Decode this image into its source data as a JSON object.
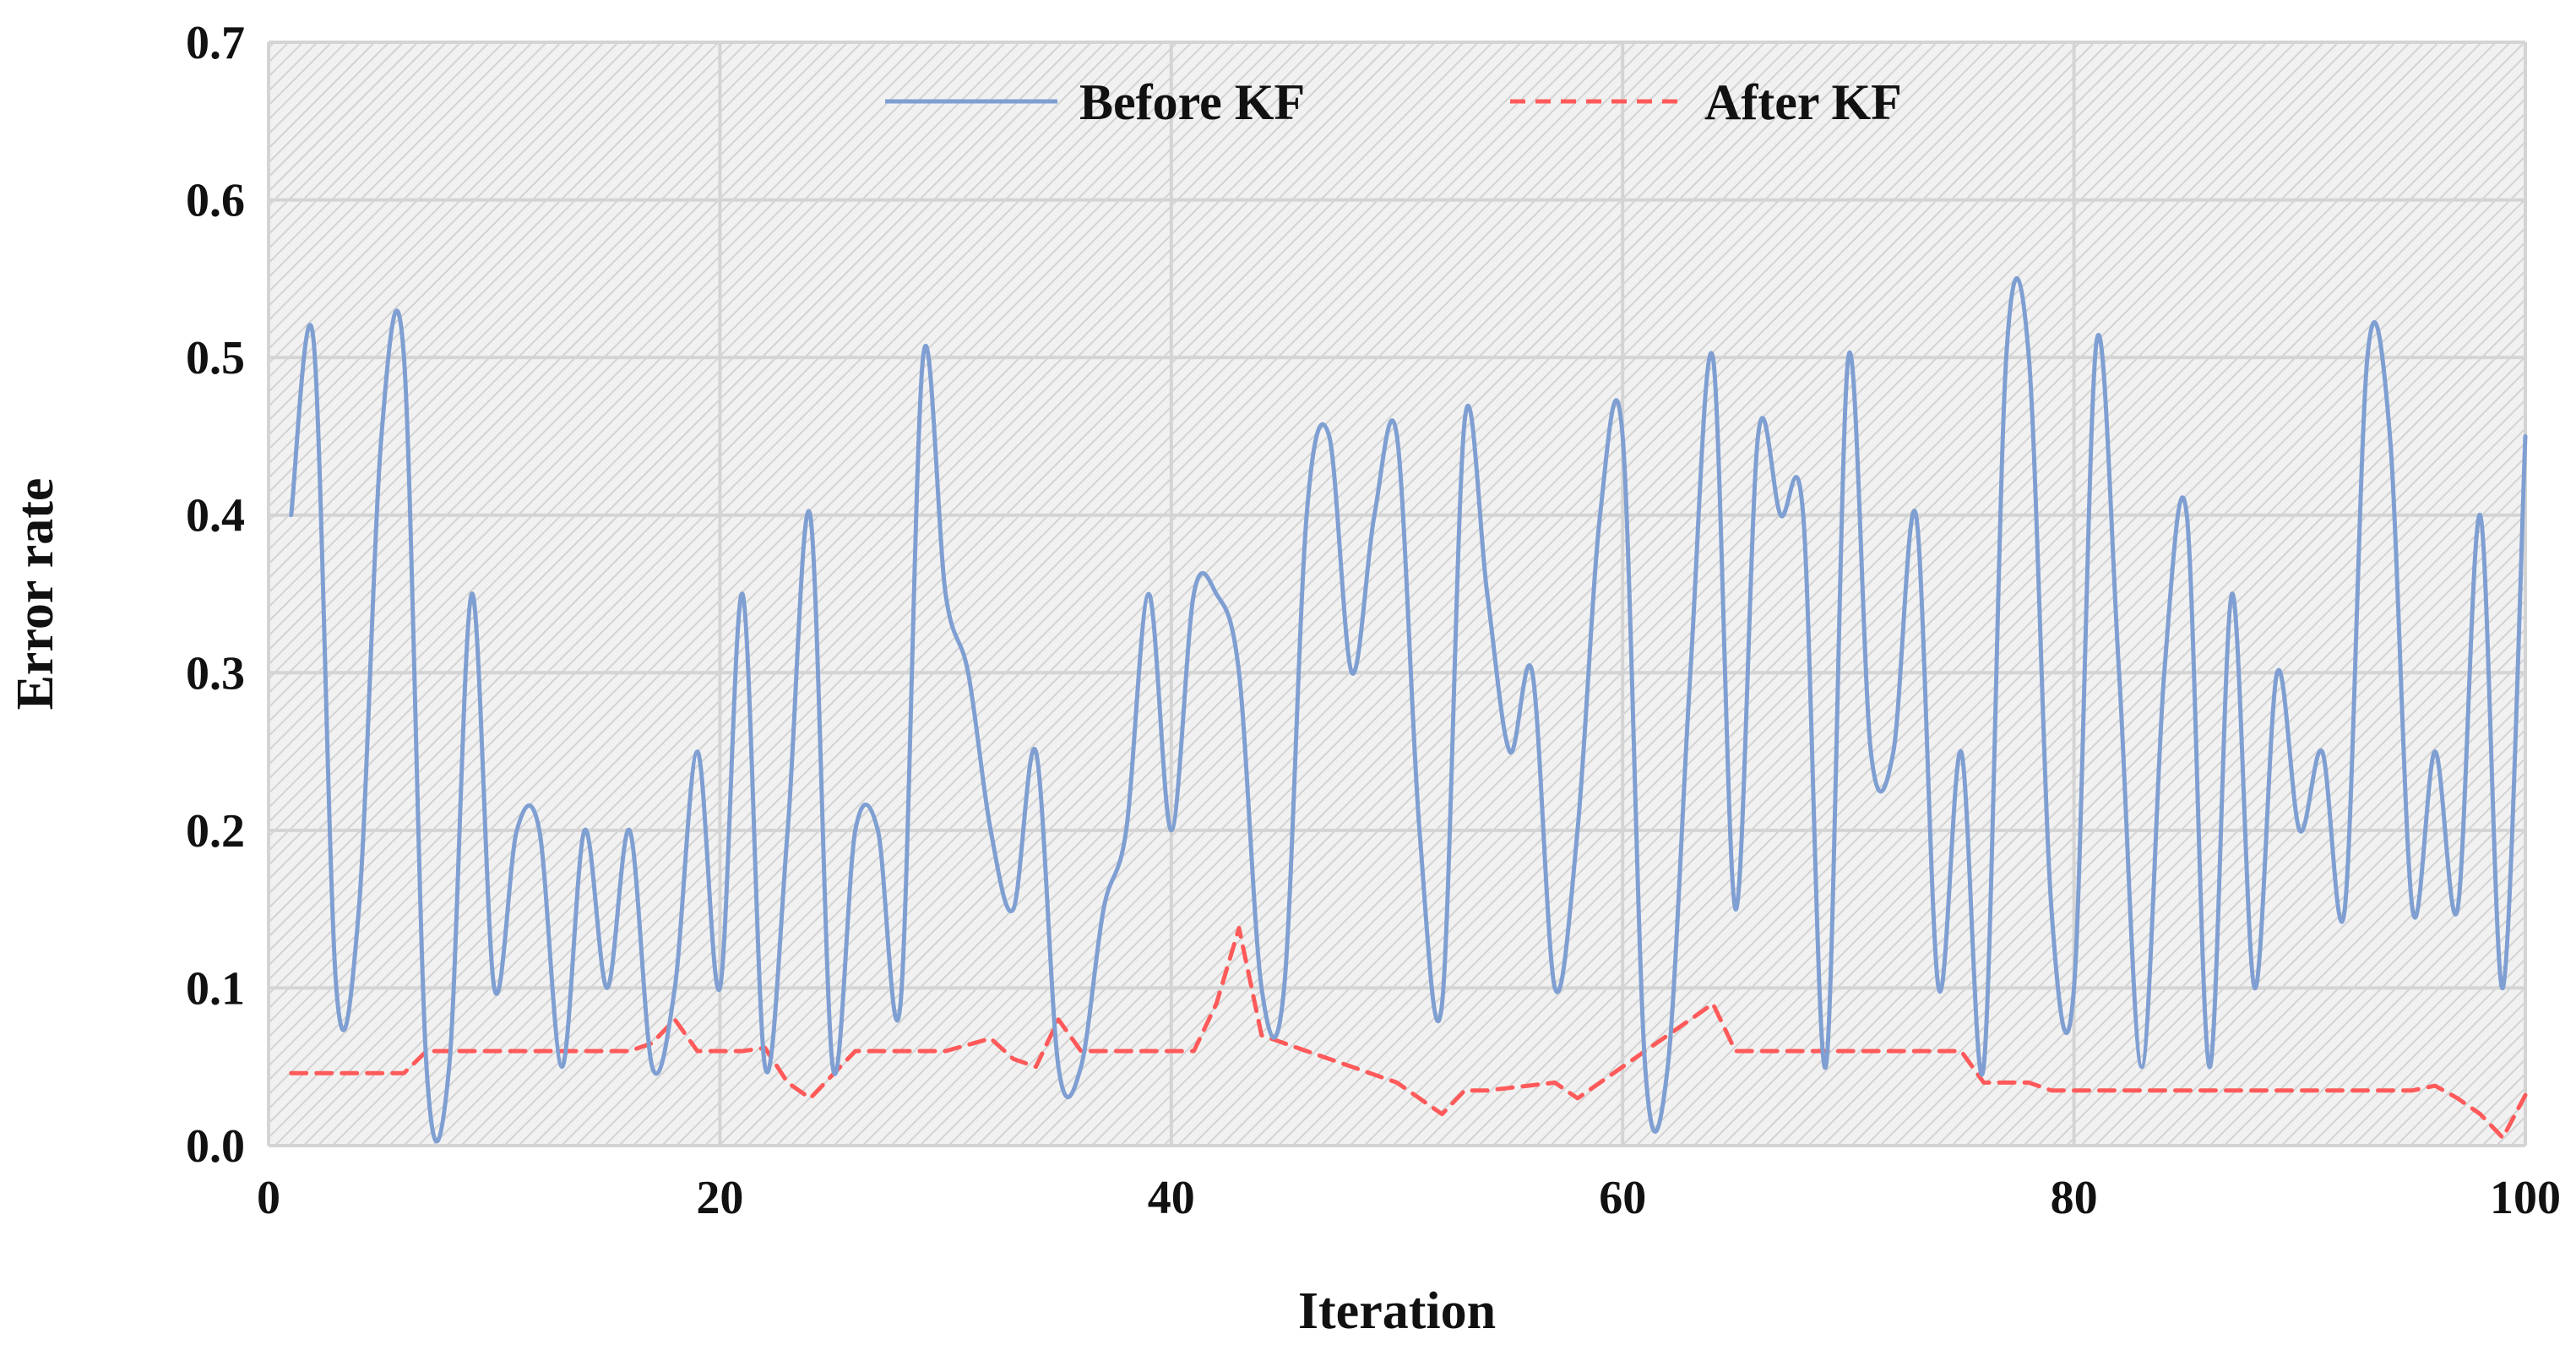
{
  "chart_data": {
    "type": "line",
    "title": "",
    "xlabel": "Iteration",
    "ylabel": "Error rate",
    "xlim": [
      0,
      100
    ],
    "ylim": [
      0,
      0.7
    ],
    "xticks": [
      0,
      20,
      40,
      60,
      80,
      100
    ],
    "yticks": [
      0.0,
      0.1,
      0.2,
      0.3,
      0.4,
      0.5,
      0.6,
      0.7
    ],
    "x_tick_labels": [
      "0",
      "20",
      "40",
      "60",
      "80",
      "100"
    ],
    "y_tick_labels": [
      "0.0",
      "0.1",
      "0.2",
      "0.3",
      "0.4",
      "0.5",
      "0.6",
      "0.7"
    ],
    "grid": true,
    "legend_position": "top-center",
    "series": [
      {
        "name": "Before KF",
        "color": "#7f9fd2",
        "style": "solid",
        "x": [
          1,
          2,
          3,
          4,
          5,
          6,
          7,
          8,
          9,
          10,
          11,
          12,
          13,
          14,
          15,
          16,
          17,
          18,
          19,
          20,
          21,
          22,
          23,
          24,
          25,
          26,
          27,
          28,
          29,
          30,
          31,
          32,
          33,
          34,
          35,
          36,
          37,
          38,
          39,
          40,
          41,
          42,
          43,
          44,
          45,
          46,
          47,
          48,
          49,
          50,
          51,
          52,
          53,
          54,
          55,
          56,
          57,
          58,
          59,
          60,
          61,
          62,
          63,
          64,
          65,
          66,
          67,
          68,
          69,
          70,
          71,
          72,
          73,
          74,
          75,
          76,
          77,
          78,
          79,
          80,
          81,
          82,
          83,
          84,
          85,
          86,
          87,
          88,
          89,
          90,
          91,
          92,
          93,
          94,
          95,
          96,
          97,
          98,
          99,
          100
        ],
        "values": [
          0.4,
          0.51,
          0.1,
          0.15,
          0.45,
          0.5,
          0.05,
          0.05,
          0.35,
          0.1,
          0.2,
          0.2,
          0.05,
          0.2,
          0.1,
          0.2,
          0.05,
          0.1,
          0.25,
          0.1,
          0.35,
          0.05,
          0.2,
          0.4,
          0.05,
          0.2,
          0.2,
          0.09,
          0.5,
          0.35,
          0.3,
          0.2,
          0.15,
          0.25,
          0.05,
          0.05,
          0.15,
          0.2,
          0.35,
          0.2,
          0.35,
          0.35,
          0.3,
          0.1,
          0.1,
          0.4,
          0.45,
          0.3,
          0.4,
          0.45,
          0.2,
          0.09,
          0.46,
          0.35,
          0.25,
          0.3,
          0.1,
          0.2,
          0.4,
          0.45,
          0.05,
          0.05,
          0.3,
          0.5,
          0.15,
          0.45,
          0.4,
          0.4,
          0.05,
          0.5,
          0.25,
          0.25,
          0.4,
          0.1,
          0.25,
          0.05,
          0.5,
          0.5,
          0.15,
          0.1,
          0.51,
          0.3,
          0.05,
          0.3,
          0.4,
          0.05,
          0.35,
          0.1,
          0.3,
          0.2,
          0.25,
          0.15,
          0.5,
          0.45,
          0.15,
          0.25,
          0.15,
          0.4,
          0.1,
          0.45
        ]
      },
      {
        "name": "After KF",
        "color": "#ff5a5a",
        "style": "dashed",
        "x": [
          1,
          6,
          7,
          10,
          15,
          16,
          17,
          18,
          19,
          20,
          21,
          22,
          23,
          24,
          25,
          26,
          28,
          30,
          32,
          33,
          34,
          35,
          36,
          38,
          40,
          41,
          42,
          43,
          44,
          46,
          48,
          50,
          52,
          53,
          54,
          57,
          58,
          60,
          62,
          64,
          65,
          66,
          70,
          75,
          76,
          78,
          79,
          80,
          95,
          96,
          97,
          98,
          99,
          100
        ],
        "values": [
          0.046,
          0.046,
          0.06,
          0.06,
          0.06,
          0.06,
          0.065,
          0.08,
          0.06,
          0.06,
          0.06,
          0.062,
          0.04,
          0.03,
          0.045,
          0.06,
          0.06,
          0.06,
          0.068,
          0.055,
          0.05,
          0.08,
          0.06,
          0.06,
          0.06,
          0.06,
          0.09,
          0.138,
          0.07,
          0.06,
          0.05,
          0.04,
          0.02,
          0.035,
          0.035,
          0.04,
          0.03,
          0.05,
          0.07,
          0.09,
          0.06,
          0.06,
          0.06,
          0.06,
          0.04,
          0.04,
          0.035,
          0.035,
          0.035,
          0.038,
          0.03,
          0.02,
          0.005,
          0.032
        ]
      }
    ]
  }
}
